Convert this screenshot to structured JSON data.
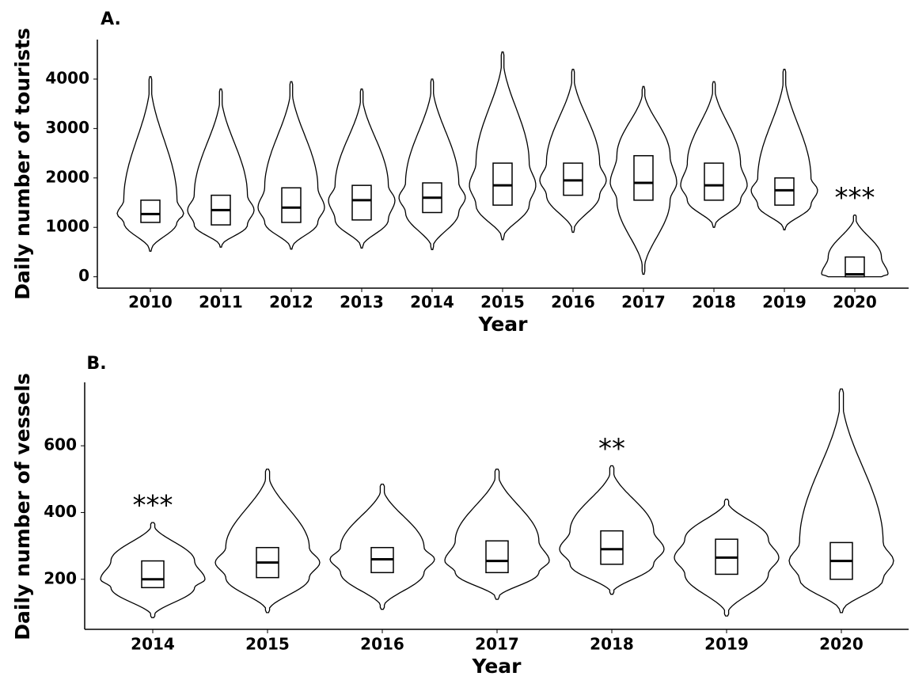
{
  "chart_data": [
    {
      "type": "violin",
      "panel": "A.",
      "xlabel": "Year",
      "ylabel": "Daily number of tourists",
      "categories": [
        "2010",
        "2011",
        "2012",
        "2013",
        "2014",
        "2015",
        "2016",
        "2017",
        "2018",
        "2019",
        "2020"
      ],
      "min": [
        516,
        600,
        560,
        580,
        550,
        750,
        900,
        50,
        1000,
        950,
        0
      ],
      "q1": [
        1100,
        1050,
        1100,
        1150,
        1300,
        1450,
        1650,
        1550,
        1550,
        1450,
        0
      ],
      "median": [
        1270,
        1350,
        1400,
        1550,
        1600,
        1850,
        1950,
        1900,
        1850,
        1750,
        50
      ],
      "q3": [
        1550,
        1650,
        1800,
        1850,
        1900,
        2300,
        2300,
        2450,
        2300,
        2000,
        400
      ],
      "max": [
        4050,
        3800,
        3950,
        3800,
        4000,
        4550,
        4200,
        3850,
        3950,
        4200,
        1250
      ],
      "significance": [
        null,
        null,
        null,
        null,
        null,
        null,
        null,
        null,
        null,
        null,
        "***"
      ],
      "ylim": [
        -230,
        4800
      ],
      "yticks": [
        0,
        1000,
        2000,
        3000,
        4000
      ],
      "color": "#000000"
    },
    {
      "type": "violin",
      "panel": "B.",
      "xlabel": "Year",
      "ylabel": "Daily number of vessels",
      "categories": [
        "2014",
        "2015",
        "2016",
        "2017",
        "2018",
        "2019",
        "2020"
      ],
      "min": [
        85,
        100,
        110,
        140,
        155,
        90,
        100
      ],
      "q1": [
        175,
        205,
        220,
        220,
        245,
        215,
        200
      ],
      "median": [
        200,
        250,
        260,
        255,
        290,
        265,
        255
      ],
      "q3": [
        255,
        295,
        295,
        315,
        345,
        320,
        310
      ],
      "max": [
        370,
        530,
        485,
        530,
        540,
        440,
        770
      ],
      "significance": [
        "***",
        null,
        null,
        null,
        "**",
        null,
        null
      ],
      "ylim": [
        50,
        790
      ],
      "yticks": [
        200,
        400,
        600
      ],
      "color": "#000000"
    }
  ]
}
